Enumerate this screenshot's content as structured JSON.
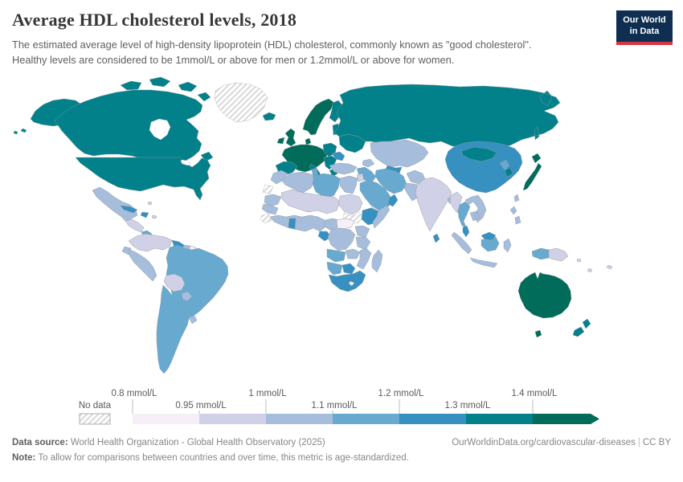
{
  "header": {
    "title": "Average HDL cholesterol levels, 2018",
    "subtitle": "The estimated average level of high-density lipoprotein (HDL) cholesterol, commonly known as \"good cholesterol\". Healthy levels are considered to be 1mmol/L or above for men or 1.2mmol/L or above for women.",
    "logo": {
      "line1": "Our World",
      "line2": "in Data",
      "bg_color": "#0f2e52",
      "accent_color": "#d7353f"
    }
  },
  "legend": {
    "no_data_label": "No data",
    "entries": [
      {
        "label": "0.8 mmol/L",
        "color": "#f6eff7"
      },
      {
        "label": "0.95 mmol/L",
        "color": "#d0d1e6"
      },
      {
        "label": "1 mmol/L",
        "color": "#a6bddb"
      },
      {
        "label": "1.1 mmol/L",
        "color": "#67a9cf"
      },
      {
        "label": "1.2 mmol/L",
        "color": "#3690c0"
      },
      {
        "label": "1.3 mmol/L",
        "color": "#02818a"
      },
      {
        "label": "1.4 mmol/L",
        "color": "#016c59"
      }
    ]
  },
  "footer": {
    "source_label": "Data source:",
    "source_rest": " World Health Organization - Global Health Observatory (2025)",
    "credit": "OurWorldinData.org/cardiovascular-diseases",
    "divider": "|",
    "license": "CC BY",
    "note_label": "Note:",
    "note_rest": " To allow for comparisons between countries and over time, this metric is age-standardized."
  },
  "chart_data": {
    "type": "choropleth_map",
    "title": "Average HDL cholesterol levels",
    "year": 2018,
    "unit": "mmol/L",
    "bins": [
      "0.8–0.95",
      "0.95–1",
      "1–1.1",
      "1.1–1.2",
      "1.2–1.3",
      "1.3–1.4",
      "1.4+"
    ],
    "bin_colors": {
      "0.8–0.95": "#f6eff7",
      "0.95–1": "#d0d1e6",
      "1–1.1": "#a6bddb",
      "1.1–1.2": "#67a9cf",
      "1.2–1.3": "#3690c0",
      "1.3–1.4": "#02818a",
      "1.4+": "#016c59",
      "No data": "hatch"
    },
    "legend_position": "bottom",
    "regions": [
      {
        "id": "alaska",
        "name": "United States (Alaska)",
        "bin": "1.3–1.4"
      },
      {
        "id": "canada",
        "name": "Canada",
        "bin": "1.3–1.4"
      },
      {
        "id": "canada-arctic-islands",
        "name": "Canada (Arctic islands)",
        "bin": "1.3–1.4"
      },
      {
        "id": "greenland",
        "name": "Greenland",
        "bin": "No data"
      },
      {
        "id": "iceland",
        "name": "Iceland",
        "bin": "1.3–1.4"
      },
      {
        "id": "usa",
        "name": "United States",
        "bin": "1.3–1.4"
      },
      {
        "id": "mexico",
        "name": "Mexico",
        "bin": "1–1.1"
      },
      {
        "id": "central-america",
        "name": "Guatemala, Honduras & Nicaragua",
        "bin": "0.95–1"
      },
      {
        "id": "costa-rica-panama",
        "name": "Costa Rica & Panama",
        "bin": "1.1–1.2"
      },
      {
        "id": "cuba",
        "name": "Cuba",
        "bin": "1.2–1.3"
      },
      {
        "id": "hispaniola",
        "name": "Haiti & Dominican Republic",
        "bin": "1.2–1.3"
      },
      {
        "id": "caribbean-islands",
        "name": "Caribbean islands",
        "bin": "0.95–1"
      },
      {
        "id": "colombia-venezuela",
        "name": "Colombia & Venezuela",
        "bin": "0.95–1"
      },
      {
        "id": "guyana",
        "name": "Guyana",
        "bin": "1.2–1.3"
      },
      {
        "id": "suriname",
        "name": "Suriname",
        "bin": "1–1.1"
      },
      {
        "id": "french-guiana",
        "name": "French Guiana",
        "bin": "0.8–0.95"
      },
      {
        "id": "ecuador",
        "name": "Ecuador",
        "bin": "1–1.1"
      },
      {
        "id": "peru",
        "name": "Peru",
        "bin": "1–1.1"
      },
      {
        "id": "brazil",
        "name": "Brazil",
        "bin": "1.1–1.2"
      },
      {
        "id": "bolivia",
        "name": "Bolivia",
        "bin": "0.95–1"
      },
      {
        "id": "paraguay",
        "name": "Paraguay",
        "bin": "1–1.1"
      },
      {
        "id": "uruguay",
        "name": "Uruguay",
        "bin": "1–1.1"
      },
      {
        "id": "argentina-chile",
        "name": "Argentina & Chile",
        "bin": "1.1–1.2"
      },
      {
        "id": "uk",
        "name": "United Kingdom",
        "bin": "1.4+"
      },
      {
        "id": "ireland",
        "name": "Ireland",
        "bin": "1.4+"
      },
      {
        "id": "norway-sweden",
        "name": "Norway & Sweden",
        "bin": "1.4+"
      },
      {
        "id": "denmark",
        "name": "Denmark",
        "bin": "1.4+"
      },
      {
        "id": "finland",
        "name": "Finland",
        "bin": "1.3–1.4"
      },
      {
        "id": "baltics",
        "name": "Baltic states",
        "bin": "1.3–1.4"
      },
      {
        "id": "western-europe",
        "name": "France, Germany & Central Europe",
        "bin": "1.4+"
      },
      {
        "id": "poland",
        "name": "Poland",
        "bin": "1.3–1.4"
      },
      {
        "id": "iberia",
        "name": "Spain & Portugal",
        "bin": "1.3–1.4"
      },
      {
        "id": "italy",
        "name": "Italy",
        "bin": "1.3–1.4"
      },
      {
        "id": "balkans",
        "name": "Balkans",
        "bin": "1.3–1.4"
      },
      {
        "id": "romania-bulgaria",
        "name": "Romania & Bulgaria",
        "bin": "1.2–1.3"
      },
      {
        "id": "greece",
        "name": "Greece",
        "bin": "1.3–1.4"
      },
      {
        "id": "ukraine-belarus",
        "name": "Ukraine & Belarus",
        "bin": "1.3–1.4"
      },
      {
        "id": "russia",
        "name": "Russia",
        "bin": "1.3–1.4"
      },
      {
        "id": "kazakhstan-central-asia",
        "name": "Kazakhstan & Central Asia",
        "bin": "1–1.1"
      },
      {
        "id": "uzbekistan-turkmenistan",
        "name": "Uzbekistan & Turkmenistan",
        "bin": "1.2–1.3"
      },
      {
        "id": "caucasus",
        "name": "Caucasus",
        "bin": "1–1.1"
      },
      {
        "id": "turkey",
        "name": "Turkey",
        "bin": "1–1.1"
      },
      {
        "id": "syria-iraq",
        "name": "Syria & Iraq",
        "bin": "1.1–1.2"
      },
      {
        "id": "iran",
        "name": "Iran",
        "bin": "1.1–1.2"
      },
      {
        "id": "jordan-israel",
        "name": "Jordan & Israel",
        "bin": "0.95–1"
      },
      {
        "id": "saudi-arabia",
        "name": "Saudi Arabia",
        "bin": "1.1–1.2"
      },
      {
        "id": "yemen",
        "name": "Yemen",
        "bin": "1–1.1"
      },
      {
        "id": "oman",
        "name": "Oman",
        "bin": "1.2–1.3"
      },
      {
        "id": "afghanistan",
        "name": "Afghanistan",
        "bin": "1–1.1"
      },
      {
        "id": "pakistan",
        "name": "Pakistan",
        "bin": "1–1.1"
      },
      {
        "id": "india",
        "name": "India",
        "bin": "0.95–1"
      },
      {
        "id": "bangladesh",
        "name": "Bangladesh",
        "bin": "1–1.1"
      },
      {
        "id": "sri-lanka",
        "name": "Sri Lanka",
        "bin": "1.2–1.3"
      },
      {
        "id": "china",
        "name": "China",
        "bin": "1.2–1.3"
      },
      {
        "id": "mongolia",
        "name": "Mongolia",
        "bin": "1.3–1.4"
      },
      {
        "id": "north-korea",
        "name": "North Korea",
        "bin": "1.1–1.2"
      },
      {
        "id": "south-korea",
        "name": "South Korea",
        "bin": "1.3–1.4"
      },
      {
        "id": "japan",
        "name": "Japan",
        "bin": "1.4+"
      },
      {
        "id": "taiwan",
        "name": "Taiwan",
        "bin": "1–1.1"
      },
      {
        "id": "myanmar",
        "name": "Myanmar",
        "bin": "0.95–1"
      },
      {
        "id": "thailand",
        "name": "Thailand",
        "bin": "1.1–1.2"
      },
      {
        "id": "laos-vietnam-cambodia",
        "name": "Laos, Vietnam & Cambodia",
        "bin": "1–1.1"
      },
      {
        "id": "malaysia",
        "name": "Malaysia",
        "bin": "1.2–1.3"
      },
      {
        "id": "indonesia",
        "name": "Indonesia (Sumatra, Java, Sulawesi)",
        "bin": "1–1.1"
      },
      {
        "id": "kalimantan",
        "name": "Indonesia (Kalimantan)",
        "bin": "1.1–1.2"
      },
      {
        "id": "philippines",
        "name": "Philippines",
        "bin": "1–1.1"
      },
      {
        "id": "west-papua",
        "name": "Indonesia (Papua)",
        "bin": "1.1–1.2"
      },
      {
        "id": "papua-new-guinea",
        "name": "Papua New Guinea",
        "bin": "0.95–1"
      },
      {
        "id": "morocco",
        "name": "Morocco",
        "bin": "1–1.1"
      },
      {
        "id": "western-sahara",
        "name": "Western Sahara",
        "bin": "No data"
      },
      {
        "id": "algeria",
        "name": "Algeria",
        "bin": "1–1.1"
      },
      {
        "id": "tunisia",
        "name": "Tunisia",
        "bin": "1.1–1.2"
      },
      {
        "id": "libya",
        "name": "Libya",
        "bin": "1.1–1.2"
      },
      {
        "id": "egypt",
        "name": "Egypt",
        "bin": "1–1.1"
      },
      {
        "id": "mauritania",
        "name": "Mauritania",
        "bin": "1–1.1"
      },
      {
        "id": "mali-niger-chad",
        "name": "Mali, Niger & Chad",
        "bin": "0.95–1"
      },
      {
        "id": "senegal-guinea",
        "name": "Senegal & Guinea",
        "bin": "1–1.1"
      },
      {
        "id": "guinea-region",
        "name": "Guinea-Bissau & Sierra Leone",
        "bin": "No data"
      },
      {
        "id": "west-african-coast",
        "name": "Côte d'Ivoire, Benin & Nigeria",
        "bin": "1–1.1"
      },
      {
        "id": "ghana",
        "name": "Ghana",
        "bin": "1.2–1.3"
      },
      {
        "id": "sudan",
        "name": "Sudan",
        "bin": "0.95–1"
      },
      {
        "id": "south-sudan",
        "name": "South Sudan",
        "bin": "No data"
      },
      {
        "id": "ethiopia",
        "name": "Ethiopia",
        "bin": "1.2–1.3"
      },
      {
        "id": "somalia",
        "name": "Somalia",
        "bin": "1–1.1"
      },
      {
        "id": "cameroon",
        "name": "Cameroon",
        "bin": "1–1.1"
      },
      {
        "id": "central-african-republic",
        "name": "Central African Republic",
        "bin": "0.8–0.95"
      },
      {
        "id": "gabon-congo",
        "name": "Gabon & Congo",
        "bin": "1.2–1.3"
      },
      {
        "id": "dr-congo",
        "name": "Democratic Republic of Congo",
        "bin": "1–1.1"
      },
      {
        "id": "uganda-kenya",
        "name": "Uganda & Kenya",
        "bin": "1–1.1"
      },
      {
        "id": "tanzania",
        "name": "Tanzania",
        "bin": "1–1.1"
      },
      {
        "id": "angola",
        "name": "Angola",
        "bin": "1.1–1.2"
      },
      {
        "id": "zambia",
        "name": "Zambia",
        "bin": "1–1.1"
      },
      {
        "id": "zimbabwe-mozambique",
        "name": "Zimbabwe & Mozambique",
        "bin": "1–1.1"
      },
      {
        "id": "namibia",
        "name": "Namibia",
        "bin": "1.1–1.2"
      },
      {
        "id": "botswana",
        "name": "Botswana",
        "bin": "1.2–1.3"
      },
      {
        "id": "south-africa",
        "name": "South Africa",
        "bin": "1.2–1.3"
      },
      {
        "id": "lesotho",
        "name": "Lesotho",
        "bin": "0.8–0.95"
      },
      {
        "id": "madagascar",
        "name": "Madagascar",
        "bin": "1–1.1"
      },
      {
        "id": "australia",
        "name": "Australia",
        "bin": "1.4+"
      },
      {
        "id": "new-zealand",
        "name": "New Zealand",
        "bin": "1.3–1.4"
      },
      {
        "id": "pacific-islands",
        "name": "Pacific islands",
        "bin": "0.95–1"
      }
    ]
  }
}
